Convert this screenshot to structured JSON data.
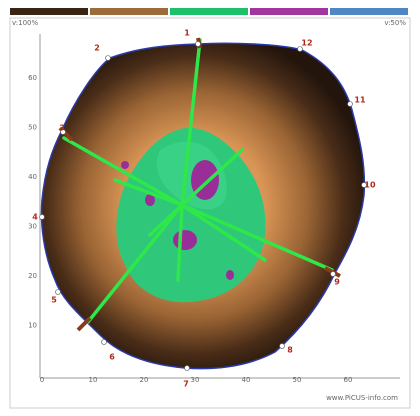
{
  "header": {
    "left_label": "v:100%",
    "right_label": "v:50%",
    "scale_colors": [
      "#3a2416",
      "#9c6b3b",
      "#1fc06c",
      "#a0369e",
      "#4f86c4"
    ]
  },
  "axes": {
    "x_ticks": [
      0,
      10,
      20,
      30,
      40,
      50,
      60
    ],
    "y_ticks": [
      10,
      20,
      30,
      40,
      50,
      60
    ]
  },
  "nodes": [
    {
      "label": "1"
    },
    {
      "label": "2"
    },
    {
      "label": "3"
    },
    {
      "label": "4"
    },
    {
      "label": "5"
    },
    {
      "label": "6"
    },
    {
      "label": "7"
    },
    {
      "label": "8"
    },
    {
      "label": "9"
    },
    {
      "label": "10"
    },
    {
      "label": "11"
    },
    {
      "label": "12"
    }
  ],
  "footer": "www.PiCUS-info.com"
}
